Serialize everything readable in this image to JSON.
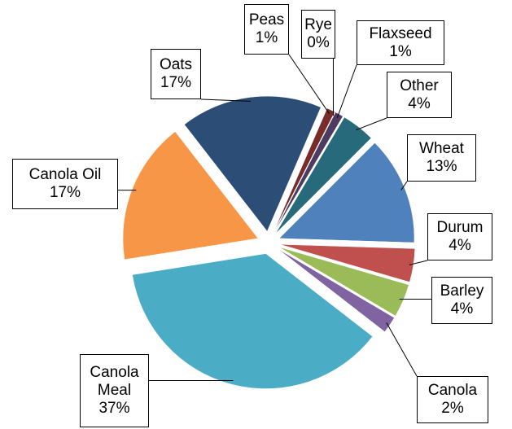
{
  "chart_data": {
    "type": "pie",
    "categories": [
      "Wheat",
      "Durum",
      "Barley",
      "Canola",
      "Canola Meal",
      "Canola Oil",
      "Oats",
      "Peas",
      "Rye",
      "Flaxseed",
      "Other"
    ],
    "values": [
      13,
      4,
      4,
      2,
      37,
      17,
      17,
      1,
      0,
      1,
      4
    ],
    "value_labels": [
      "13%",
      "4%",
      "4%",
      "2%",
      "37%",
      "17%",
      "17%",
      "1%",
      "0%",
      "1%",
      "4%"
    ],
    "colors": [
      "#4f81bd",
      "#c0504d",
      "#9bbb59",
      "#8064a2",
      "#4bacc6",
      "#f79646",
      "#2c4d75",
      "#772c2a",
      "#5f7530",
      "#4d3b62",
      "#276a7c"
    ]
  }
}
